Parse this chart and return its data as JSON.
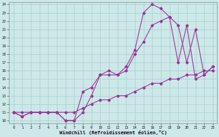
{
  "xlabel": "Windchill (Refroidissement éolien,°C)",
  "bg_color": "#cce8e8",
  "grid_color": "#aacccc",
  "line_color": "#993399",
  "xlim": [
    -0.5,
    23.5
  ],
  "ylim": [
    9.7,
    24.3
  ],
  "xticks": [
    0,
    1,
    2,
    3,
    4,
    5,
    6,
    7,
    8,
    9,
    10,
    11,
    12,
    13,
    14,
    15,
    16,
    17,
    18,
    19,
    20,
    21,
    22,
    23
  ],
  "yticks": [
    10,
    11,
    12,
    13,
    14,
    15,
    16,
    17,
    18,
    19,
    20,
    21,
    22,
    23,
    24
  ],
  "curve1_x": [
    0,
    1,
    2,
    3,
    4,
    5,
    6,
    7,
    8,
    9,
    10,
    11,
    12,
    13,
    14,
    15,
    16,
    17,
    18,
    19,
    20,
    21,
    22,
    23
  ],
  "curve1_y": [
    11,
    11,
    11,
    11,
    11,
    11,
    11,
    11,
    11.5,
    12,
    12.5,
    12.5,
    13,
    13,
    13.5,
    14,
    14.5,
    14.5,
    15,
    15,
    15.5,
    15.5,
    16,
    16
  ],
  "curve2_x": [
    0,
    1,
    2,
    3,
    4,
    5,
    6,
    7,
    8,
    9,
    10,
    11,
    12,
    13,
    14,
    15,
    16,
    17,
    18,
    19,
    20,
    21,
    22,
    23
  ],
  "curve2_y": [
    11,
    10.5,
    11,
    11,
    11,
    11,
    10,
    10,
    11,
    13,
    15.5,
    15.5,
    15.5,
    16,
    18,
    19.5,
    21.5,
    22,
    22.5,
    17,
    21.5,
    15,
    15.5,
    16.5
  ],
  "curve3_x": [
    0,
    1,
    2,
    3,
    4,
    5,
    6,
    7,
    8,
    9,
    10,
    11,
    12,
    13,
    14,
    15,
    16,
    17,
    18,
    19,
    20,
    21,
    22,
    23
  ],
  "curve3_y": [
    11,
    10.5,
    11,
    11,
    11,
    11,
    10,
    10,
    13.5,
    14,
    15.5,
    16,
    15.5,
    16.5,
    18.5,
    23,
    24,
    23.5,
    22.5,
    21.5,
    17,
    21,
    15.5,
    16.5
  ]
}
